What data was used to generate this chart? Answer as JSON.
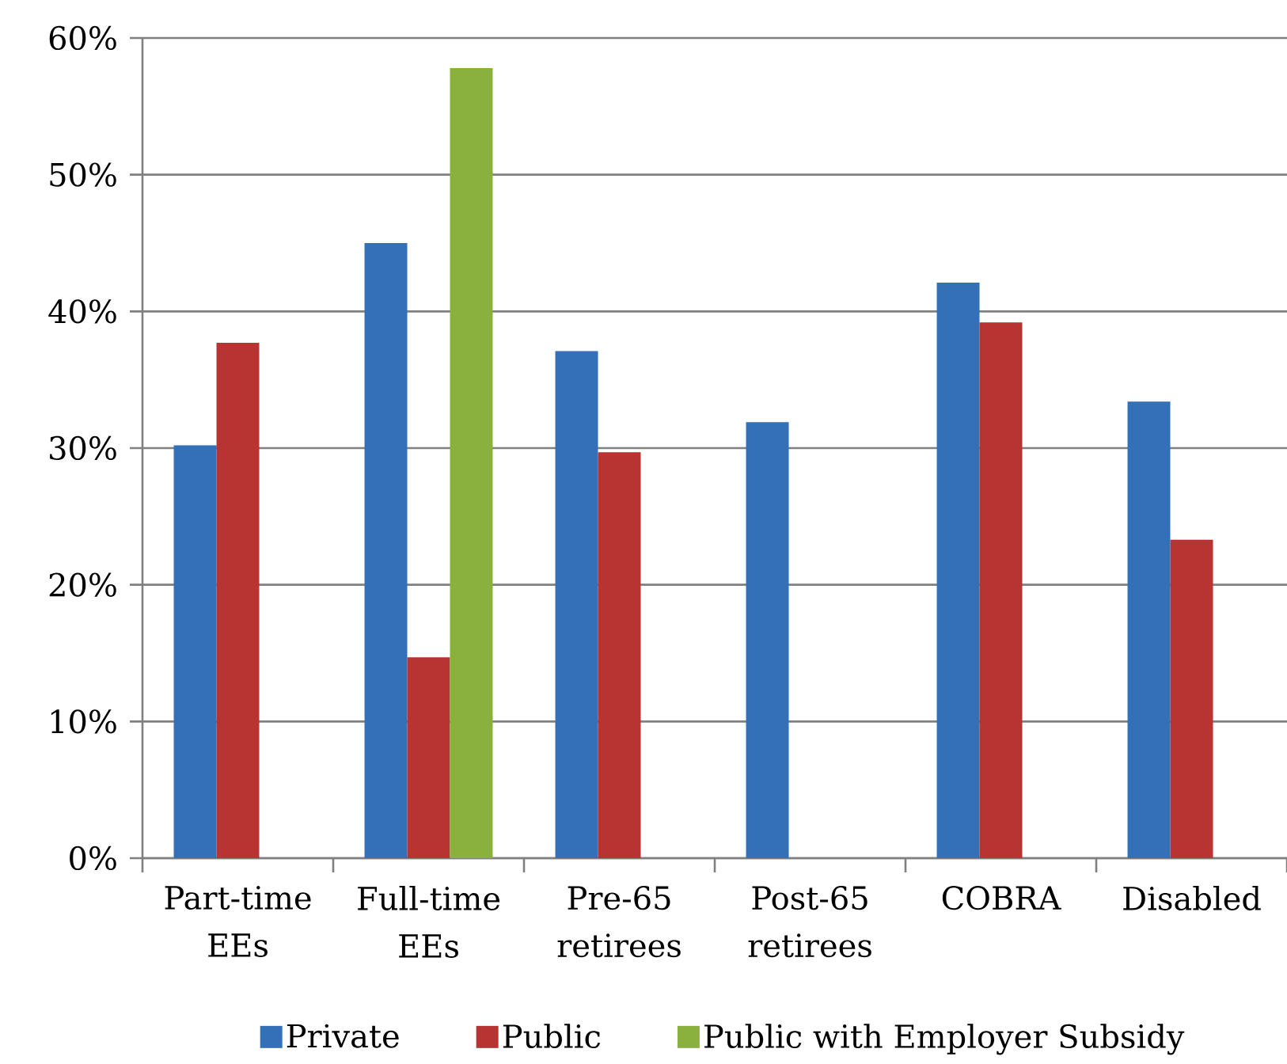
{
  "chart_data": {
    "type": "bar",
    "categories": [
      "Part-time EEs",
      "Full-time EEs",
      "Pre-65 retirees",
      "Post-65 retirees",
      "COBRA",
      "Disabled"
    ],
    "series": [
      {
        "name": "Private",
        "color": "#3470b8",
        "values": [
          30.2,
          45.0,
          37.1,
          31.9,
          42.1,
          33.4
        ]
      },
      {
        "name": "Public",
        "color": "#b83433",
        "values": [
          37.7,
          14.7,
          29.7,
          null,
          39.2,
          23.3
        ]
      },
      {
        "name": "Public with Employer Subsidy",
        "color": "#8ab03e",
        "values": [
          null,
          57.8,
          null,
          null,
          null,
          null
        ]
      }
    ],
    "ylim": [
      0,
      60
    ],
    "yticks": [
      {
        "value": 0,
        "label": "0%"
      },
      {
        "value": 10,
        "label": "10%"
      },
      {
        "value": 20,
        "label": "20%"
      },
      {
        "value": 30,
        "label": "30%"
      },
      {
        "value": 40,
        "label": "40%"
      },
      {
        "value": 50,
        "label": "50%"
      },
      {
        "value": 60,
        "label": "60%"
      }
    ],
    "grid": "y",
    "legend": "bottom"
  }
}
